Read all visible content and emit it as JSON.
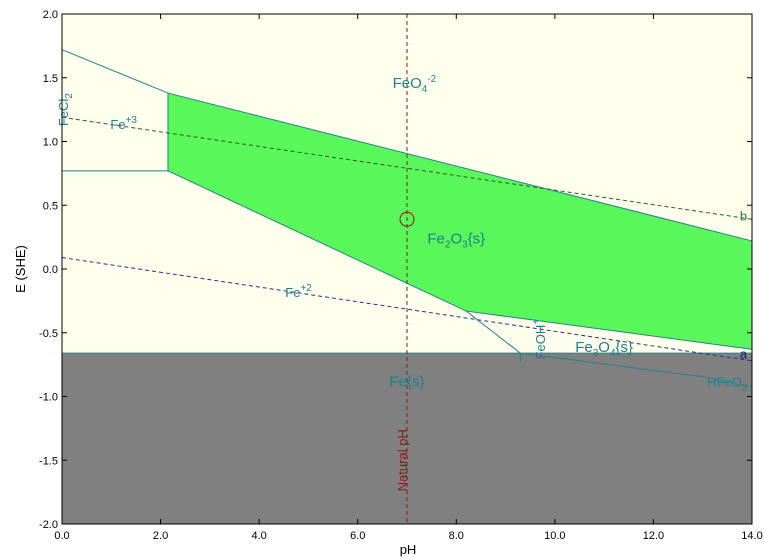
{
  "chart_data": {
    "type": "area",
    "title": "",
    "xlabel": "pH",
    "ylabel": "E (SHE)",
    "xlim": [
      0,
      14
    ],
    "ylim": [
      -2,
      2
    ],
    "grid": false,
    "xticks": [
      0,
      2,
      4,
      6,
      8,
      10,
      12,
      14
    ],
    "xtick_labels": [
      "0.0",
      "2.0",
      "4.0",
      "6.0",
      "8.0",
      "10.0",
      "12.0",
      "14.0"
    ],
    "yticks": [
      2,
      1.5,
      1,
      0.5,
      0,
      -0.5,
      -1,
      -1.5,
      -2
    ],
    "ytick_labels": [
      "2.0",
      "1.5",
      "1.0",
      "0.5",
      "0.0",
      "-0.5",
      "-1.0",
      "-1.5",
      "-2.0"
    ],
    "colors": {
      "background": "#ffffee",
      "solid_oxide": "#5af75a",
      "metal": "#808080",
      "boundary": "#2a7f8a",
      "water_line": "#2f7a2f",
      "water_line_a": "#2a2a9a",
      "natural_ph": "#8b1a1a",
      "label": "#1f7f8a"
    },
    "regions": [
      {
        "name": "FeCl2",
        "polygon": [
          [
            0,
            1.72
          ],
          [
            2.15,
            1.38
          ],
          [
            2.15,
            0.77
          ],
          [
            0,
            0.77
          ]
        ]
      },
      {
        "name": "Fe2O3(s)",
        "polygon": [
          [
            2.15,
            1.38
          ],
          [
            14,
            0.22
          ],
          [
            14,
            -0.63
          ],
          [
            8.2,
            -0.33
          ],
          [
            2.15,
            0.77
          ]
        ]
      },
      {
        "name": "Fe3O4(s)",
        "polygon": [
          [
            8.2,
            -0.33
          ],
          [
            14,
            -0.63
          ],
          [
            14,
            -0.93
          ],
          [
            13.1,
            -0.85
          ],
          [
            9.3,
            -0.66
          ]
        ]
      },
      {
        "name": "FeOH+",
        "polygon": [
          [
            8.2,
            -0.33
          ],
          [
            9.3,
            -0.66
          ],
          [
            9.3,
            -0.73
          ],
          [
            8.55,
            -0.66
          ]
        ]
      },
      {
        "name": "Fe(s)",
        "polygon": [
          [
            0,
            -0.66
          ],
          [
            14,
            -0.66
          ],
          [
            14,
            -2
          ],
          [
            0,
            -2
          ]
        ]
      }
    ],
    "boundaries": [
      {
        "points": [
          [
            0,
            1.72
          ],
          [
            2.15,
            1.38
          ],
          [
            14,
            0.22
          ]
        ]
      },
      {
        "points": [
          [
            0,
            0.77
          ],
          [
            2.15,
            0.77
          ],
          [
            2.15,
            1.38
          ]
        ]
      },
      {
        "points": [
          [
            2.15,
            0.77
          ],
          [
            8.2,
            -0.33
          ],
          [
            14,
            -0.63
          ]
        ]
      },
      {
        "points": [
          [
            8.2,
            -0.33
          ],
          [
            9.3,
            -0.66
          ],
          [
            13.1,
            -0.85
          ],
          [
            14,
            -0.93
          ]
        ]
      },
      {
        "points": [
          [
            0,
            -0.66
          ],
          [
            14,
            -0.66
          ]
        ]
      },
      {
        "points": [
          [
            9.3,
            -0.66
          ],
          [
            9.3,
            -0.73
          ]
        ]
      }
    ],
    "series": [
      {
        "name": "b",
        "type": "dashed",
        "points": [
          [
            0,
            1.19
          ],
          [
            14,
            0.39
          ]
        ]
      },
      {
        "name": "a",
        "type": "dashed",
        "points": [
          [
            0,
            0.09
          ],
          [
            14,
            -0.72
          ]
        ]
      },
      {
        "name": "Natural pH",
        "type": "dashed-vertical",
        "points": [
          [
            7,
            2
          ],
          [
            7,
            -2
          ]
        ]
      }
    ],
    "marker": {
      "x": 7.0,
      "y": 0.39
    },
    "labels": [
      {
        "text": "FeO",
        "sub": "4",
        "sup": "-2",
        "x": 7.15,
        "y": 1.42
      },
      {
        "text": "FeCl",
        "sub": "2",
        "x": 0.12,
        "y": 1.25,
        "rotate": -90
      },
      {
        "text": "Fe",
        "sup": "+3",
        "x": 1.25,
        "y": 1.1
      },
      {
        "text": "Fe",
        "sub": "2",
        "mid": "O",
        "sub2": "3",
        "tail": "{s}",
        "x": 8.0,
        "y": 0.2
      },
      {
        "text": "Fe",
        "sup": "+2",
        "x": 4.8,
        "y": -0.22
      },
      {
        "text": "Fe",
        "sub": "3",
        "mid": "O",
        "sub2": "4",
        "tail": "{s}",
        "x": 11.0,
        "y": -0.65
      },
      {
        "text": "FeOH",
        "sup": "+",
        "x": 9.8,
        "y": -0.55,
        "rotate": -90
      },
      {
        "text": "HFeO",
        "sub": "2",
        "x": 13.5,
        "y": -0.92
      },
      {
        "text": "Fe{s}",
        "x": 7.0,
        "y": -0.92
      },
      {
        "text": "Natural pH",
        "x": 7.0,
        "y": -1.5,
        "rotate": -90
      },
      {
        "text": "b",
        "x": 13.9,
        "y": 0.38
      },
      {
        "text": "a",
        "x": 13.9,
        "y": -0.7
      }
    ]
  }
}
